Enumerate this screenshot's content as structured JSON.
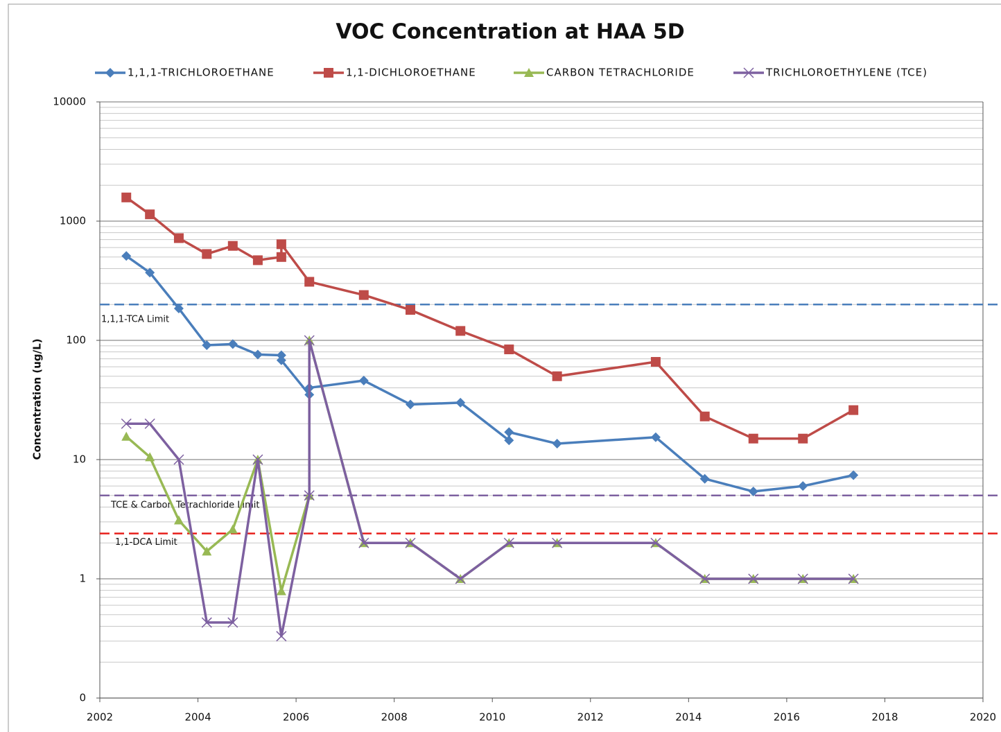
{
  "chart_data": {
    "type": "line",
    "title": "VOC Concentration at HAA 5D",
    "y_label": "Concentration (ug/L)",
    "xlim": [
      2002,
      2020
    ],
    "xticks": [
      2002,
      2004,
      2006,
      2008,
      2010,
      2012,
      2014,
      2016,
      2018,
      2020
    ],
    "ylim": [
      0.1,
      10000
    ],
    "yticks": [
      {
        "value": 0.1,
        "label": "0"
      },
      1,
      10,
      100,
      1000,
      10000
    ],
    "y_log": true,
    "grid": true,
    "legend": "top",
    "series": [
      {
        "name": "1,1,1-TRICHLOROETHANE",
        "color": "#4a7ebb",
        "marker": "diamond",
        "x": [
          2002.54,
          2003.02,
          2003.61,
          2004.18,
          2004.71,
          2005.22,
          2005.7,
          2005.7,
          2006.27,
          2006.27,
          2007.38,
          2008.33,
          2009.35,
          2010.34,
          2010.34,
          2011.32,
          2013.33,
          2014.33,
          2015.32,
          2016.33,
          2017.36
        ],
        "values": [
          510,
          370,
          185,
          91,
          93,
          76,
          75,
          68,
          35,
          40,
          46,
          29,
          30,
          14.5,
          17,
          13.6,
          15.4,
          6.9,
          5.4,
          6.0,
          7.4
        ]
      },
      {
        "name": "1,1-DICHLOROETHANE",
        "color": "#be4b48",
        "marker": "square",
        "x": [
          2002.54,
          2003.02,
          2003.61,
          2004.18,
          2004.71,
          2005.22,
          2005.7,
          2005.7,
          2006.27,
          2007.38,
          2008.33,
          2009.35,
          2010.34,
          2011.32,
          2013.33,
          2014.33,
          2015.32,
          2016.33,
          2017.36
        ],
        "values": [
          1580,
          1140,
          720,
          530,
          620,
          470,
          500,
          640,
          310,
          240,
          180,
          120,
          84,
          50,
          66,
          23,
          15,
          15,
          26
        ]
      },
      {
        "name": "CARBON TETRACHLORIDE",
        "color": "#98b954",
        "marker": "triangle",
        "x": [
          2002.54,
          2003.02,
          2003.61,
          2004.18,
          2004.71,
          2005.22,
          2005.7,
          2006.27,
          2006.27,
          2007.38,
          2008.33,
          2009.35,
          2010.34,
          2011.32,
          2013.33,
          2014.33,
          2015.32,
          2016.33,
          2017.36
        ],
        "values": [
          15.6,
          10.5,
          3.1,
          1.7,
          2.6,
          10,
          0.79,
          5,
          100,
          2,
          2,
          1,
          2,
          2,
          2,
          1,
          1,
          1,
          1
        ]
      },
      {
        "name": "TRICHLOROETHYLENE (TCE)",
        "color": "#7d60a0",
        "marker": "x",
        "x": [
          2002.54,
          2003.02,
          2003.61,
          2004.18,
          2004.71,
          2005.22,
          2005.7,
          2006.27,
          2006.27,
          2007.38,
          2008.33,
          2009.35,
          2010.34,
          2011.32,
          2013.33,
          2014.33,
          2015.32,
          2016.33,
          2017.36
        ],
        "values": [
          20,
          20,
          10,
          0.43,
          0.43,
          10,
          0.33,
          5,
          100,
          2,
          2,
          1,
          2,
          2,
          2,
          1,
          1,
          1,
          1
        ]
      }
    ],
    "limits": [
      {
        "label": "1,1,1-TCA Limit",
        "value": 200,
        "color": "#4a7ebb"
      },
      {
        "label": "TCE & Carbon Tetrachloride Limit",
        "value": 5,
        "color": "#7d60a0"
      },
      {
        "label": "1,1-DCA Limit",
        "value": 2.4,
        "color": "#e8201c"
      }
    ]
  }
}
